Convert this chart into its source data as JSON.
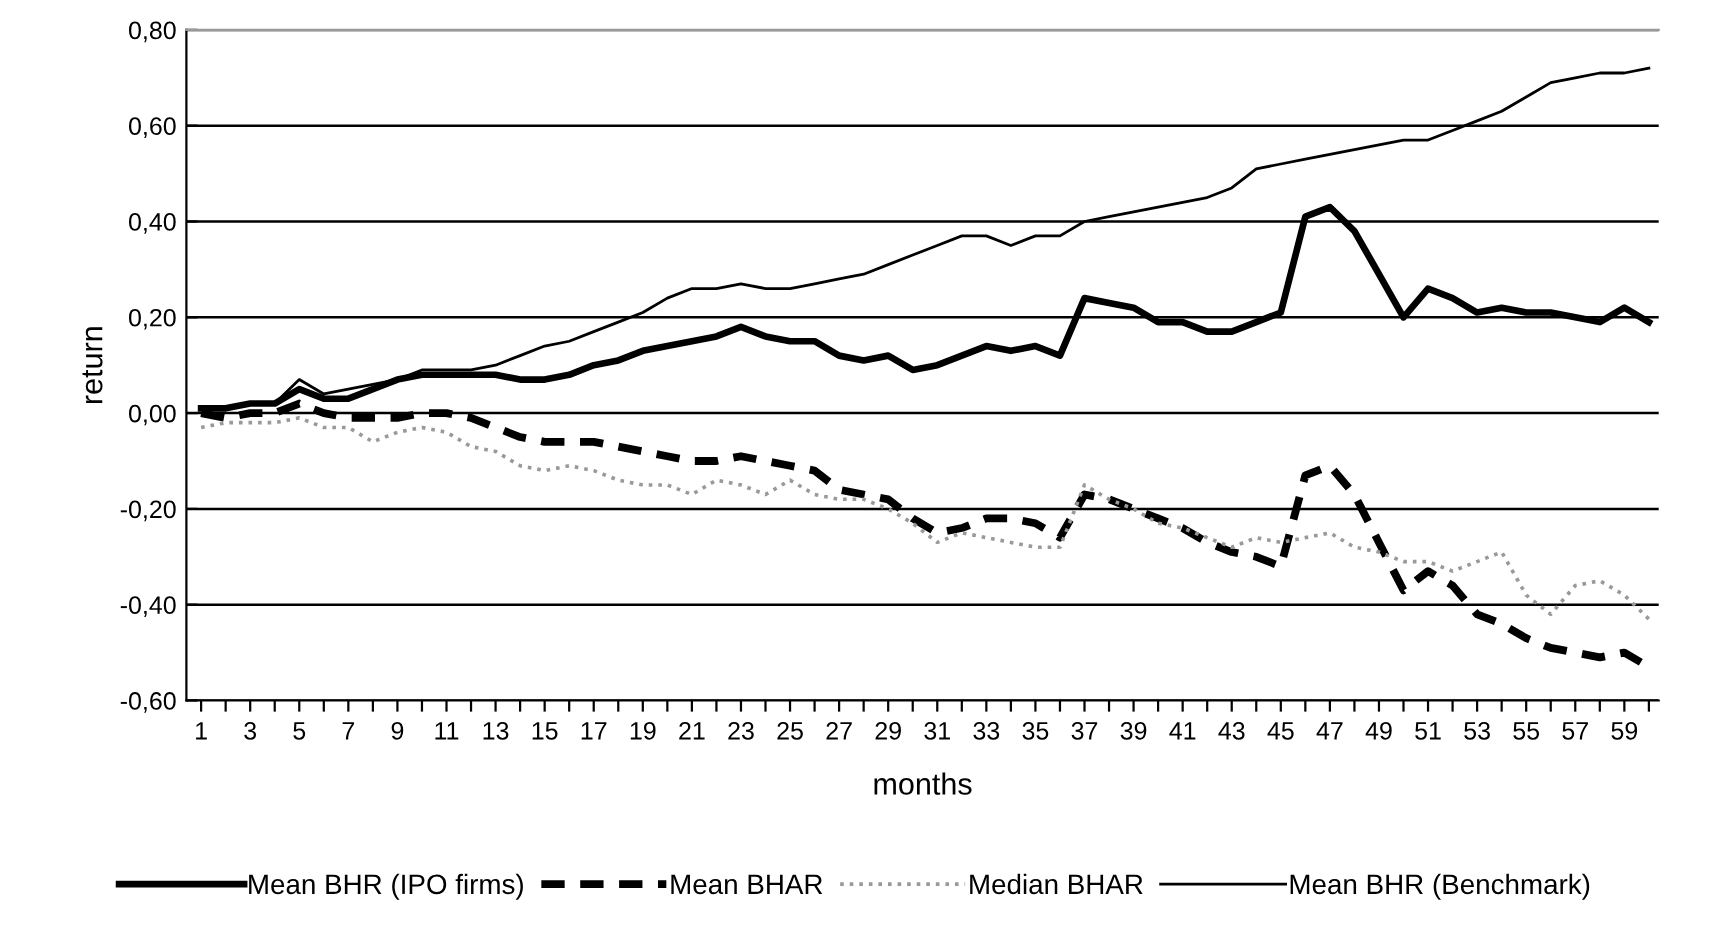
{
  "chart_data": {
    "type": "line",
    "xlabel": "months",
    "ylabel": "return",
    "categories": [
      "1",
      null,
      "3",
      null,
      "5",
      null,
      "7",
      null,
      "9",
      null,
      "11",
      null,
      "13",
      null,
      "15",
      null,
      "17",
      null,
      "19",
      null,
      "21",
      null,
      "23",
      null,
      "25",
      null,
      "27",
      null,
      "29",
      null,
      "31",
      null,
      "33",
      null,
      "35",
      null,
      "37",
      null,
      "39",
      null,
      "41",
      null,
      "43",
      null,
      "45",
      null,
      "47",
      null,
      "49",
      null,
      "51",
      null,
      "53",
      null,
      "55",
      null,
      "57",
      null,
      "59",
      null
    ],
    "series": [
      {
        "name": "Mean BHR (IPO firms)",
        "color": "#000000",
        "line_style": "solid",
        "values": [
          0.01,
          0.01,
          0.02,
          0.02,
          0.05,
          0.03,
          0.03,
          0.05,
          0.07,
          0.08,
          0.08,
          0.08,
          0.08,
          0.07,
          0.07,
          0.08,
          0.1,
          0.11,
          0.13,
          0.14,
          0.15,
          0.16,
          0.18,
          0.16,
          0.15,
          0.15,
          0.12,
          0.11,
          0.12,
          0.09,
          0.1,
          0.12,
          0.14,
          0.13,
          0.14,
          0.12,
          0.24,
          0.23,
          0.22,
          0.19,
          0.19,
          0.17,
          0.17,
          0.19,
          0.21,
          0.41,
          0.43,
          0.38,
          0.29,
          0.2,
          0.26,
          0.24,
          0.21,
          0.22,
          0.21,
          0.21,
          0.2,
          0.19,
          0.22,
          0.19
        ]
      },
      {
        "name": "Mean BHAR",
        "color": "#000000",
        "line_style": "dashed",
        "values": [
          0.0,
          -0.01,
          0.0,
          0.0,
          0.02,
          0.0,
          -0.01,
          -0.01,
          -0.01,
          0.0,
          0.0,
          -0.01,
          -0.03,
          -0.05,
          -0.06,
          -0.06,
          -0.06,
          -0.07,
          -0.08,
          -0.09,
          -0.1,
          -0.1,
          -0.09,
          -0.1,
          -0.11,
          -0.12,
          -0.16,
          -0.17,
          -0.18,
          -0.22,
          -0.25,
          -0.24,
          -0.22,
          -0.22,
          -0.23,
          -0.26,
          -0.17,
          -0.18,
          -0.2,
          -0.22,
          -0.24,
          -0.27,
          -0.29,
          -0.3,
          -0.32,
          -0.13,
          -0.11,
          -0.17,
          -0.27,
          -0.37,
          -0.33,
          -0.36,
          -0.42,
          -0.44,
          -0.47,
          -0.49,
          -0.5,
          -0.51,
          -0.5,
          -0.53
        ]
      },
      {
        "name": "Median BHAR",
        "color": "#999999",
        "line_style": "dotted",
        "values": [
          -0.03,
          -0.02,
          -0.02,
          -0.02,
          -0.01,
          -0.03,
          -0.03,
          -0.06,
          -0.04,
          -0.03,
          -0.04,
          -0.07,
          -0.08,
          -0.11,
          -0.12,
          -0.11,
          -0.12,
          -0.14,
          -0.15,
          -0.15,
          -0.17,
          -0.14,
          -0.15,
          -0.17,
          -0.14,
          -0.17,
          -0.18,
          -0.18,
          -0.2,
          -0.23,
          -0.27,
          -0.25,
          -0.26,
          -0.27,
          -0.28,
          -0.28,
          -0.15,
          -0.18,
          -0.2,
          -0.23,
          -0.24,
          -0.26,
          -0.28,
          -0.26,
          -0.27,
          -0.26,
          -0.25,
          -0.28,
          -0.29,
          -0.31,
          -0.31,
          -0.33,
          -0.31,
          -0.29,
          -0.38,
          -0.42,
          -0.36,
          -0.35,
          -0.38,
          -0.43
        ]
      },
      {
        "name": "Mean BHR (Benchmark)",
        "color": "#000000",
        "line_style": "solid",
        "values": [
          0.01,
          0.01,
          0.02,
          0.02,
          0.07,
          0.04,
          0.05,
          0.06,
          0.07,
          0.09,
          0.09,
          0.09,
          0.1,
          0.12,
          0.14,
          0.15,
          0.17,
          0.19,
          0.21,
          0.24,
          0.26,
          0.26,
          0.27,
          0.26,
          0.26,
          0.27,
          0.28,
          0.29,
          0.31,
          0.33,
          0.35,
          0.37,
          0.37,
          0.35,
          0.37,
          0.37,
          0.4,
          0.41,
          0.42,
          0.43,
          0.44,
          0.45,
          0.47,
          0.51,
          0.52,
          0.53,
          0.54,
          0.55,
          0.56,
          0.57,
          0.57,
          0.59,
          0.61,
          0.63,
          0.66,
          0.69,
          0.7,
          0.71,
          0.71,
          0.72
        ]
      }
    ],
    "ylim": [
      -0.6,
      0.8
    ],
    "yticks": [
      {
        "value": -0.6,
        "label": "-0,60"
      },
      {
        "value": -0.4,
        "label": "-0,40"
      },
      {
        "value": -0.2,
        "label": "-0,20"
      },
      {
        "value": 0,
        "label": "0,00"
      },
      {
        "value": 0.2,
        "label": "0,20"
      },
      {
        "value": 0.4,
        "label": "0,40"
      },
      {
        "value": 0.6,
        "label": "0,60"
      },
      {
        "value": 0.8,
        "label": "0,80"
      }
    ],
    "grid": "y",
    "legend": "bottom",
    "marker": "none"
  }
}
